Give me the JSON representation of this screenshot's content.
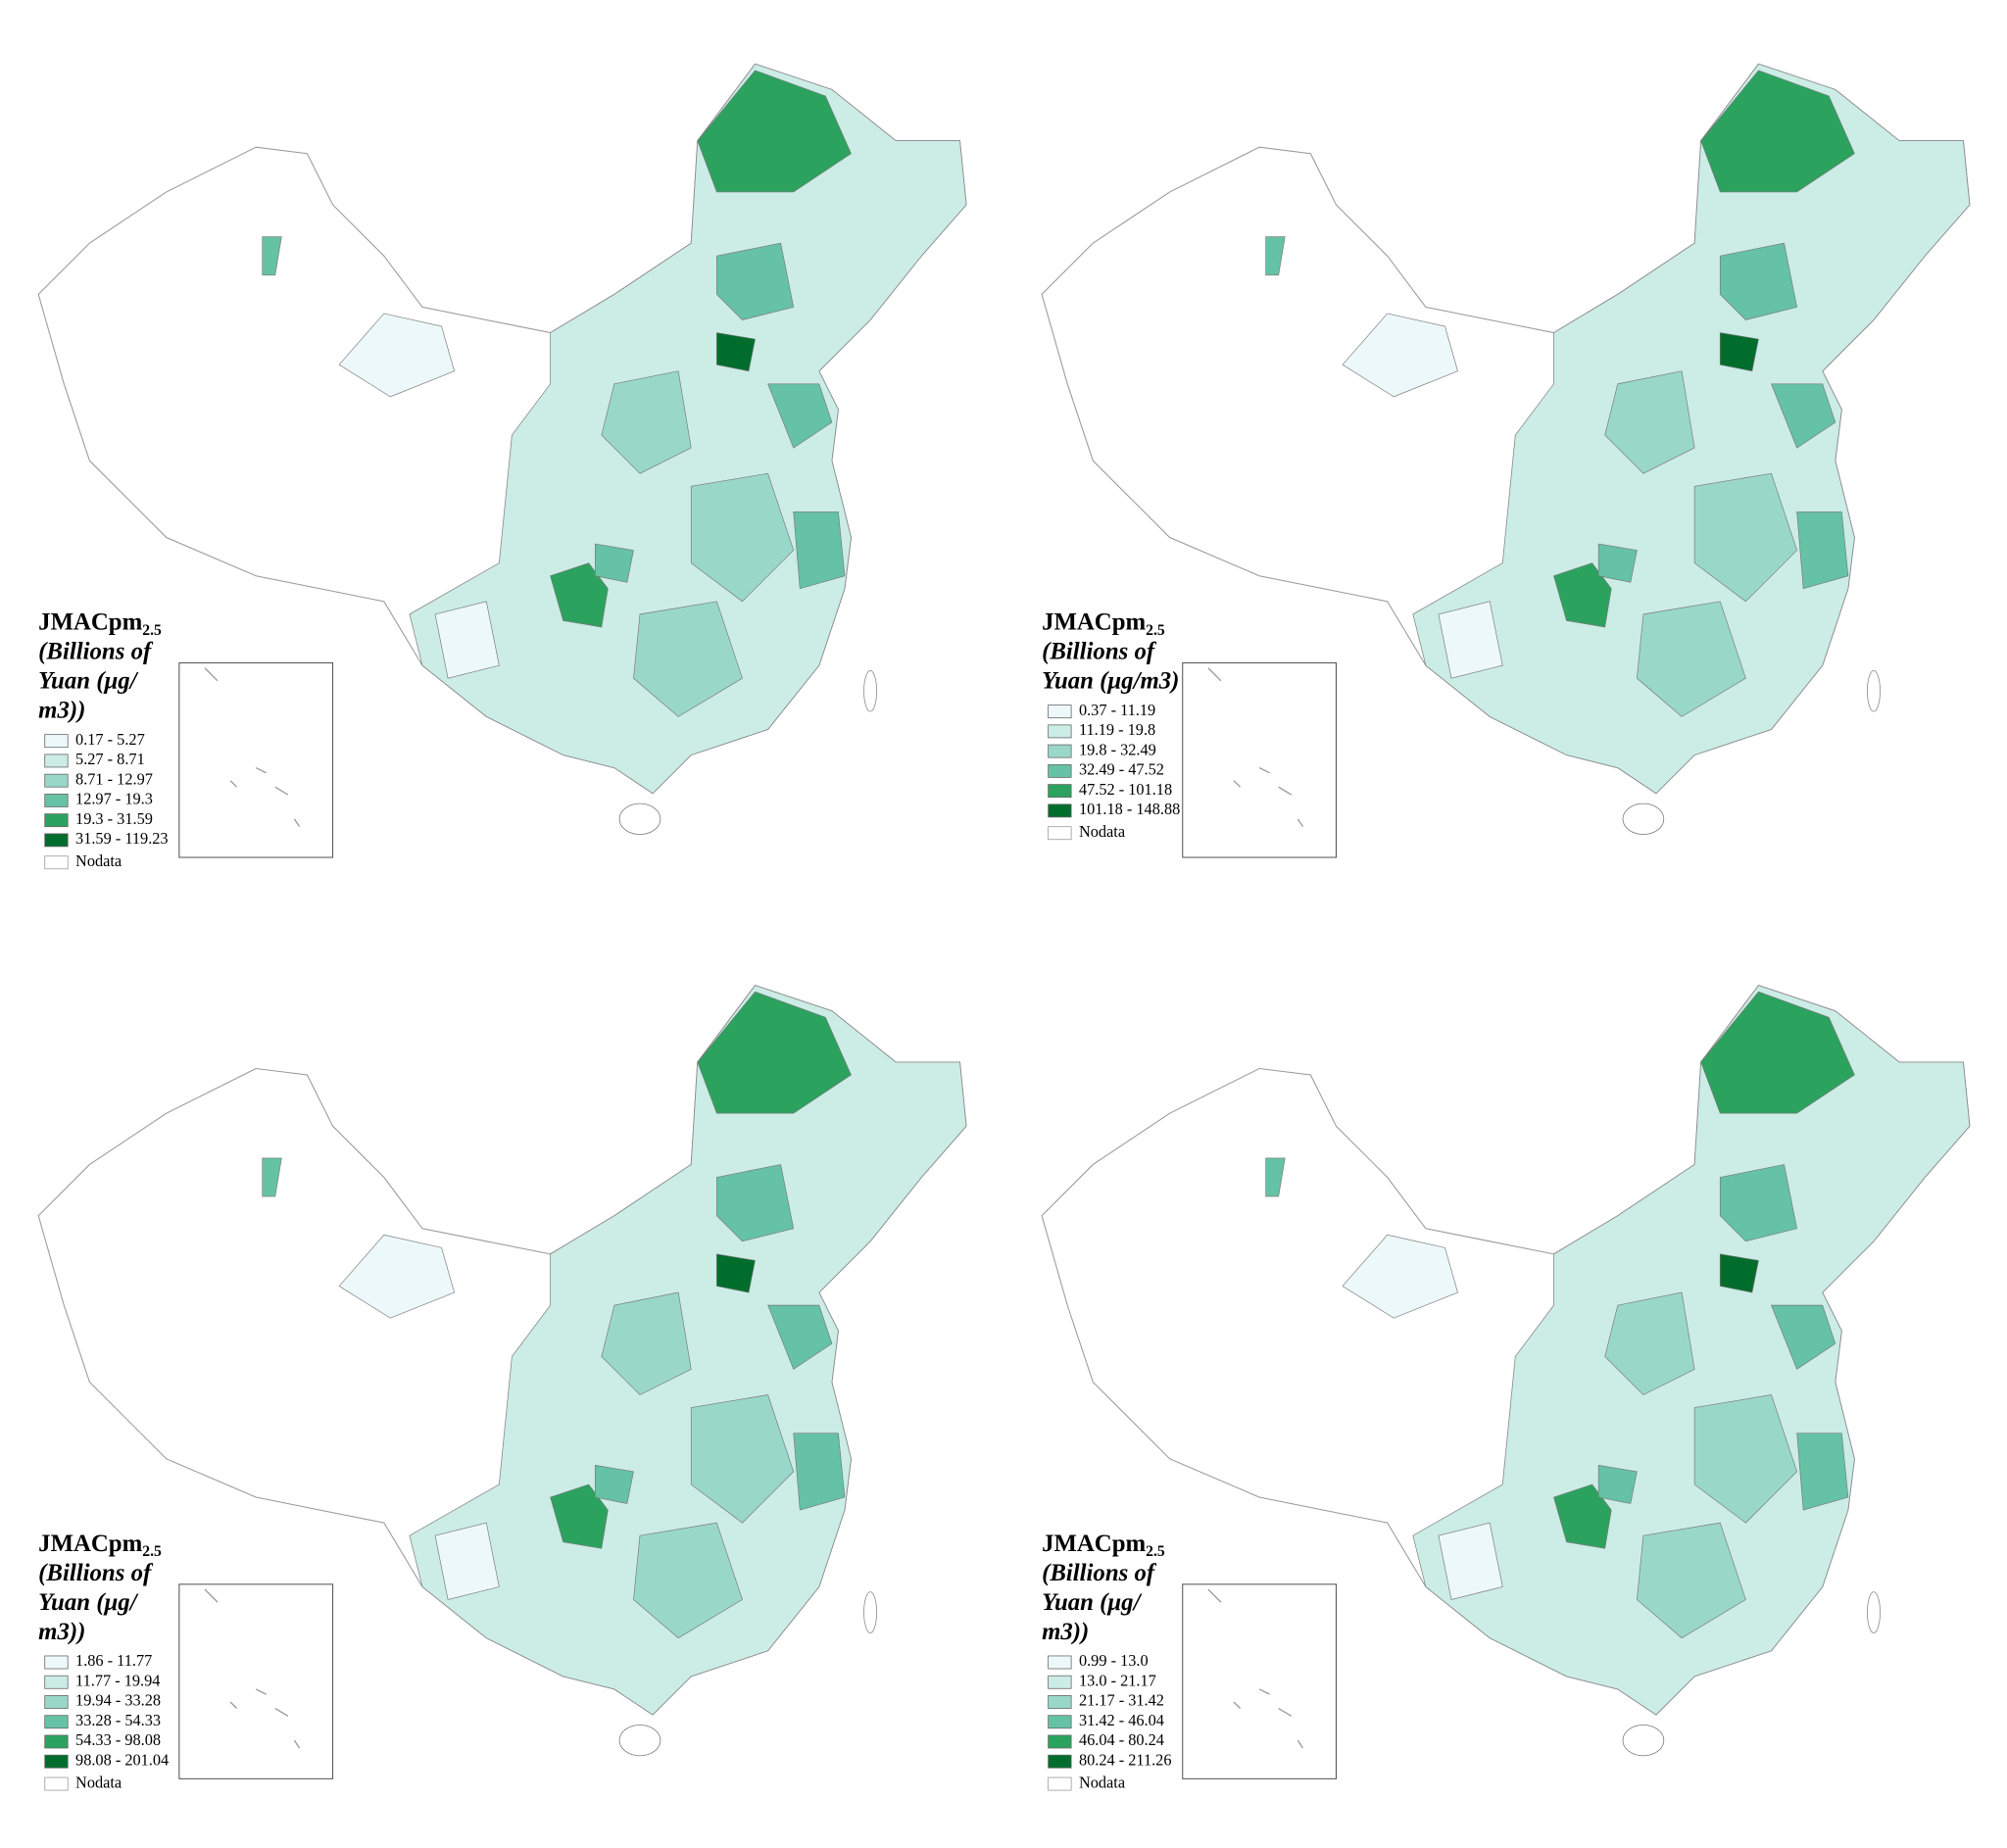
{
  "panels": [
    {
      "legend": {
        "title": "JMACpm",
        "title_subscript": "2.5",
        "title_lines": [
          "(Billions of",
          "Yuan (μg/",
          "m3))"
        ],
        "classes": [
          {
            "label": "0.17 - 5.27",
            "color": "#edf8fb"
          },
          {
            "label": "5.27 - 8.71",
            "color": "#ccece6"
          },
          {
            "label": "8.71 - 12.97",
            "color": "#99d8c9"
          },
          {
            "label": "12.97 - 19.3",
            "color": "#66c2a4"
          },
          {
            "label": "19.3 - 31.59",
            "color": "#2ca25f"
          },
          {
            "label": "31.59 - 119.23",
            "color": "#006d2c"
          }
        ],
        "nodata": {
          "label": "Nodata",
          "color": "#ffffff"
        }
      }
    },
    {
      "legend": {
        "title": "JMACpm",
        "title_subscript": "2.5",
        "title_lines": [
          "(Billions of",
          "Yuan (μg/m3)"
        ],
        "classes": [
          {
            "label": "0.37 - 11.19",
            "color": "#edf8fb"
          },
          {
            "label": "11.19 - 19.8",
            "color": "#ccece6"
          },
          {
            "label": "19.8 - 32.49",
            "color": "#99d8c9"
          },
          {
            "label": "32.49 - 47.52",
            "color": "#66c2a4"
          },
          {
            "label": "47.52 - 101.18",
            "color": "#2ca25f"
          },
          {
            "label": "101.18 - 148.88",
            "color": "#006d2c"
          }
        ],
        "nodata": {
          "label": "Nodata",
          "color": "#ffffff"
        }
      }
    },
    {
      "legend": {
        "title": "JMACpm",
        "title_subscript": "2.5",
        "title_lines": [
          "(Billions of",
          "Yuan (μg/",
          "m3))"
        ],
        "classes": [
          {
            "label": "1.86 - 11.77",
            "color": "#edf8fb"
          },
          {
            "label": "11.77 - 19.94",
            "color": "#ccece6"
          },
          {
            "label": "19.94 - 33.28",
            "color": "#99d8c9"
          },
          {
            "label": "33.28 - 54.33",
            "color": "#66c2a4"
          },
          {
            "label": "54.33 - 98.08",
            "color": "#2ca25f"
          },
          {
            "label": "98.08 - 201.04",
            "color": "#006d2c"
          }
        ],
        "nodata": {
          "label": "Nodata",
          "color": "#ffffff"
        }
      }
    },
    {
      "legend": {
        "title": "JMACpm",
        "title_subscript": "2.5",
        "title_lines": [
          "(Billions of",
          "Yuan (μg/",
          "m3))"
        ],
        "classes": [
          {
            "label": "0.99 - 13.0",
            "color": "#edf8fb"
          },
          {
            "label": "13.0 - 21.17",
            "color": "#ccece6"
          },
          {
            "label": "21.17 - 31.42",
            "color": "#99d8c9"
          },
          {
            "label": "31.42 - 46.04",
            "color": "#66c2a4"
          },
          {
            "label": "46.04 - 80.24",
            "color": "#2ca25f"
          },
          {
            "label": "80.24 - 211.26",
            "color": "#006d2c"
          }
        ],
        "nodata": {
          "label": "Nodata",
          "color": "#ffffff"
        }
      }
    }
  ]
}
